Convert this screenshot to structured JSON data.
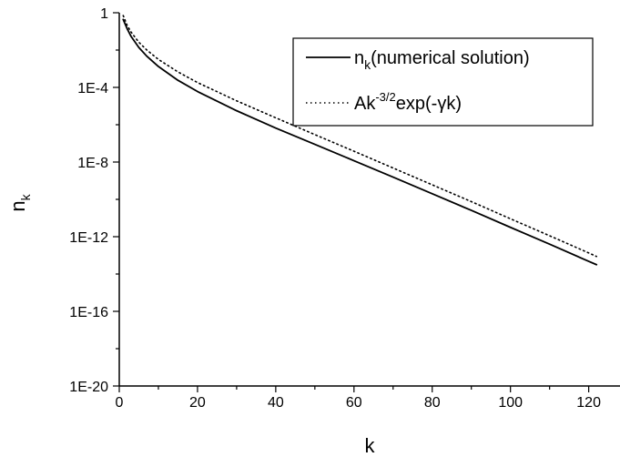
{
  "chart_data": {
    "type": "line",
    "title": "",
    "xlabel": "k",
    "ylabel": {
      "main": "n",
      "sub": "k"
    },
    "xlim": [
      0,
      128
    ],
    "ylim_exponent": [
      -20,
      0
    ],
    "yscale": "log",
    "grid": false,
    "legend_position": "top-right",
    "x_ticks": [
      0,
      20,
      40,
      60,
      80,
      100,
      120
    ],
    "y_ticks": [
      {
        "exp": 0,
        "label": "1"
      },
      {
        "exp": -4,
        "label": "1E-4"
      },
      {
        "exp": -8,
        "label": "1E-8"
      },
      {
        "exp": -12,
        "label": "1E-12"
      },
      {
        "exp": -16,
        "label": "1E-16"
      },
      {
        "exp": -20,
        "label": "1E-20"
      }
    ],
    "series": [
      {
        "name": "n_k(numerical solution)",
        "legend": {
          "main": "n",
          "sub": "k",
          "rest": "(numerical solution)"
        },
        "style": "solid",
        "color": "#000000",
        "x": [
          1,
          2,
          3,
          5,
          7,
          10,
          15,
          20,
          30,
          40,
          50,
          60,
          70,
          80,
          90,
          100,
          110,
          120,
          122
        ],
        "y_log10": [
          -0.36,
          -0.85,
          -1.26,
          -1.86,
          -2.32,
          -2.88,
          -3.62,
          -4.22,
          -5.25,
          -6.18,
          -7.05,
          -7.93,
          -8.81,
          -9.7,
          -10.59,
          -11.5,
          -12.4,
          -13.32,
          -13.5
        ]
      },
      {
        "name": "Ak^-3/2 exp(-γk)",
        "legend": {
          "main": "Ak",
          "sup": "-3/2",
          "rest": "exp(-γk)"
        },
        "style": "dotted",
        "color": "#000000",
        "x": [
          1,
          2,
          3,
          5,
          7,
          10,
          15,
          20,
          30,
          40,
          50,
          60,
          70,
          80,
          90,
          100,
          110,
          120,
          122
        ],
        "y_log10": [
          -0.15,
          -0.67,
          -1.03,
          -1.58,
          -1.99,
          -2.5,
          -3.17,
          -3.74,
          -4.72,
          -5.63,
          -6.53,
          -7.42,
          -8.32,
          -9.22,
          -10.12,
          -11.04,
          -11.95,
          -12.87,
          -13.06
        ]
      }
    ]
  }
}
